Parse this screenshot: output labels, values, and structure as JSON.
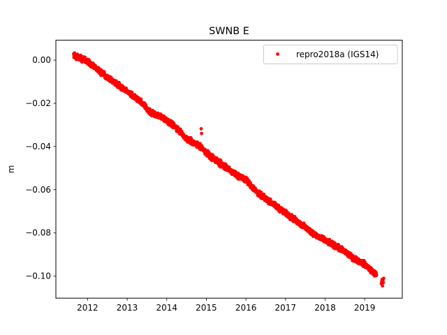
{
  "chart_data": {
    "type": "scatter",
    "title": "SWNB E",
    "xlabel": "",
    "ylabel": "m",
    "xlim": [
      2011.2,
      2019.95
    ],
    "ylim": [
      -0.1102,
      0.0092
    ],
    "xticks": [
      2012,
      2013,
      2014,
      2015,
      2016,
      2017,
      2018,
      2019
    ],
    "yticks": [
      0.0,
      -0.02,
      -0.04,
      -0.06,
      -0.08,
      -0.1
    ],
    "ytick_labels": [
      "0.00",
      "−0.02",
      "−0.04",
      "−0.06",
      "−0.08",
      "−0.10"
    ],
    "grid": false,
    "legend_position": "top-right",
    "marker_color": "#ff0000",
    "series": [
      {
        "name": "repro2018a (IGS14)",
        "color": "#ff0000",
        "trend_knots": [
          [
            2011.65,
            0.0022
          ],
          [
            2011.9,
            0.0005
          ],
          [
            2012.2,
            -0.0035
          ],
          [
            2012.4,
            -0.0065
          ],
          [
            2012.7,
            -0.0105
          ],
          [
            2013.0,
            -0.0145
          ],
          [
            2013.3,
            -0.0185
          ],
          [
            2013.6,
            -0.0245
          ],
          [
            2013.9,
            -0.0265
          ],
          [
            2014.2,
            -0.0305
          ],
          [
            2014.5,
            -0.0365
          ],
          [
            2014.8,
            -0.0395
          ],
          [
            2015.1,
            -0.0445
          ],
          [
            2015.4,
            -0.0485
          ],
          [
            2015.7,
            -0.0525
          ],
          [
            2016.0,
            -0.0555
          ],
          [
            2016.3,
            -0.0615
          ],
          [
            2016.6,
            -0.0655
          ],
          [
            2016.9,
            -0.0695
          ],
          [
            2017.2,
            -0.0735
          ],
          [
            2017.5,
            -0.0775
          ],
          [
            2017.8,
            -0.0815
          ],
          [
            2018.1,
            -0.0845
          ],
          [
            2018.4,
            -0.0875
          ],
          [
            2018.7,
            -0.0915
          ],
          [
            2019.0,
            -0.0945
          ],
          [
            2019.3,
            -0.0995
          ],
          [
            2019.5,
            -0.1025
          ]
        ],
        "time_start": 2011.65,
        "time_end": 2019.3,
        "daily_step": 0.00274,
        "scatter_amplitude": 0.0018,
        "tail_points": [
          [
            2019.42,
            -0.1035
          ],
          [
            2019.43,
            -0.1025
          ],
          [
            2019.44,
            -0.1015
          ],
          [
            2019.45,
            -0.1045
          ],
          [
            2019.46,
            -0.102
          ],
          [
            2019.47,
            -0.103
          ],
          [
            2019.48,
            -0.101
          ]
        ],
        "outliers": [
          [
            2014.87,
            -0.0318
          ],
          [
            2014.88,
            -0.034
          ]
        ]
      }
    ]
  }
}
